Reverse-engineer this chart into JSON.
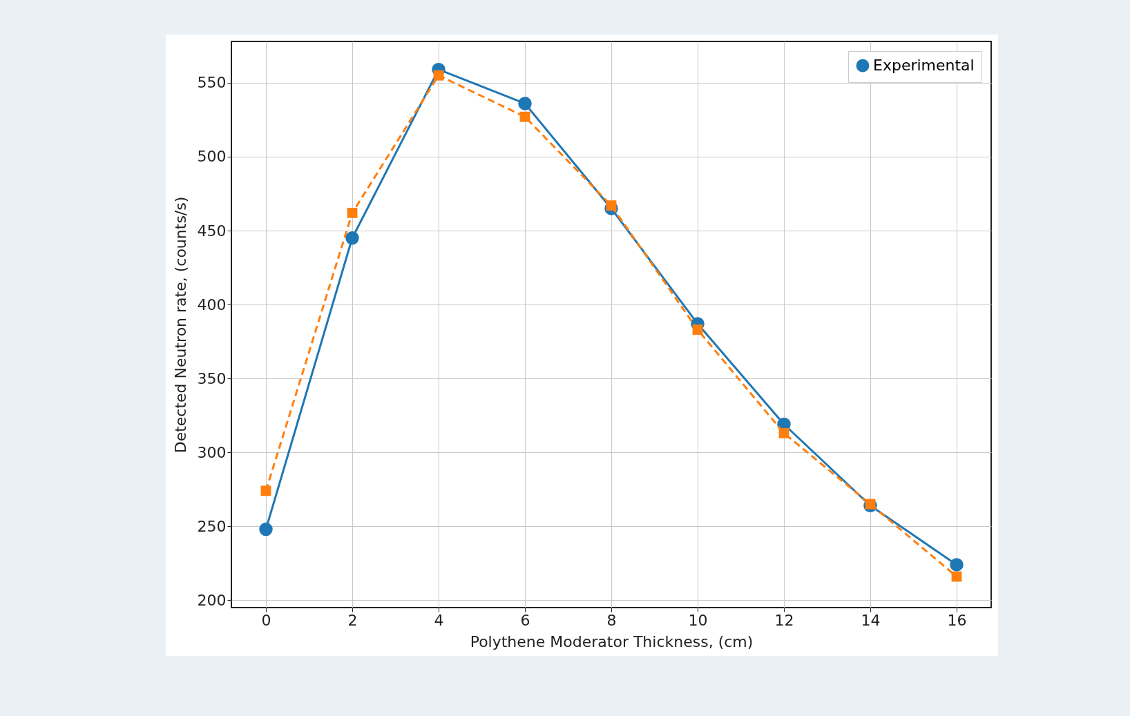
{
  "chart_data": {
    "type": "line",
    "xlabel": "Polythene Moderator Thickness, (cm)",
    "ylabel": "Detected Neutron rate, (counts/s)",
    "x": [
      0,
      2,
      4,
      6,
      8,
      10,
      12,
      14,
      16
    ],
    "series": [
      {
        "name": "Experimental",
        "color": "#1f77b4",
        "marker": "circle",
        "line_style": "solid",
        "values": [
          248,
          445,
          559,
          536,
          465,
          387,
          319,
          264,
          224
        ]
      },
      {
        "color": "#ff7f0e",
        "marker": "square",
        "line_style": "dashed",
        "values": [
          274,
          462,
          555,
          527,
          467,
          383,
          313,
          265,
          216
        ]
      }
    ],
    "xlim": [
      -0.8,
      16.8
    ],
    "xticks": [
      0,
      2,
      4,
      6,
      8,
      10,
      12,
      14,
      16
    ],
    "ylim": [
      195,
      578
    ],
    "yticks": [
      200,
      250,
      300,
      350,
      400,
      450,
      500,
      550
    ],
    "grid": true,
    "legend": "top right"
  }
}
